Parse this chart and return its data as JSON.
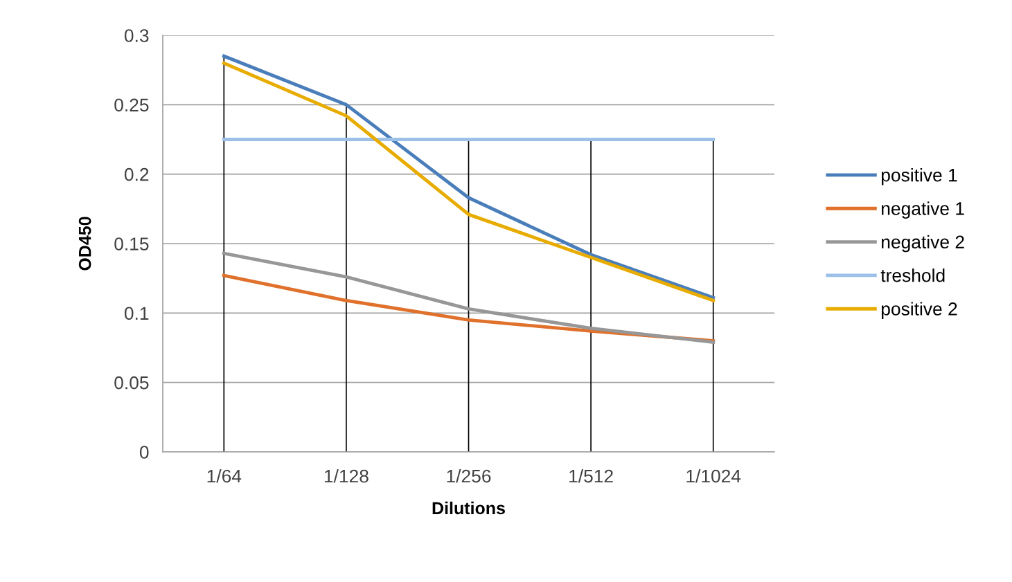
{
  "chart_data": {
    "type": "line",
    "xlabel": "Dilutions",
    "ylabel": "OD450",
    "categories": [
      "1/64",
      "1/128",
      "1/256",
      "1/512",
      "1/1024"
    ],
    "series": [
      {
        "name": "positive 1",
        "color": "#4a7ebb",
        "values": [
          0.285,
          0.25,
          0.183,
          0.142,
          0.111
        ]
      },
      {
        "name": "negative 1",
        "color": "#e0712c",
        "values": [
          0.127,
          0.109,
          0.095,
          0.087,
          0.08
        ]
      },
      {
        "name": "negative 2",
        "color": "#979797",
        "values": [
          0.143,
          0.126,
          0.103,
          0.089,
          0.079
        ]
      },
      {
        "name": "treshold",
        "color": "#9cc0e8",
        "values": [
          0.225,
          0.225,
          0.225,
          0.225,
          0.225
        ]
      },
      {
        "name": "positive 2",
        "color": "#e8ac00",
        "values": [
          0.28,
          0.242,
          0.171,
          0.14,
          0.109
        ]
      }
    ],
    "ylim": [
      0,
      0.3
    ],
    "yticks": [
      {
        "value": 0,
        "label": "0"
      },
      0.05,
      0.1,
      0.15,
      0.2,
      0.25,
      0.3
    ],
    "grid": true,
    "legend": "right",
    "marker": "none",
    "line_style": "solid"
  }
}
